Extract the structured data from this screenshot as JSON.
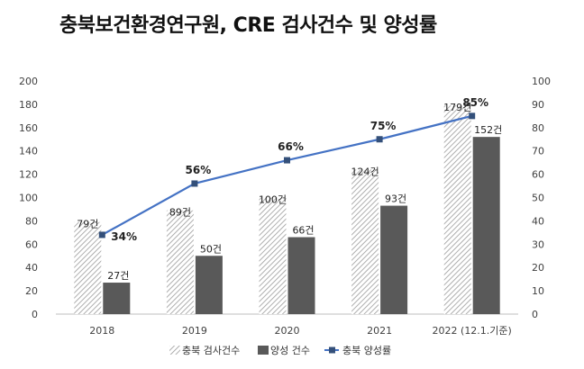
{
  "title": "충북보건환경연구원, CRE 검사건수 및 양성률",
  "chart_data": {
    "type": "bar",
    "categories": [
      "2018",
      "2019",
      "2020",
      "2021",
      "2022 (12.1.기준)"
    ],
    "series": [
      {
        "name": "충북 검사건수",
        "kind": "bar",
        "axis": "left",
        "pattern": "hatch",
        "values": [
          79,
          89,
          100,
          124,
          179
        ],
        "labels": [
          "79건",
          "89건",
          "100건",
          "124건",
          "179건"
        ]
      },
      {
        "name": "양성 건수",
        "kind": "bar",
        "axis": "left",
        "color": "#595959",
        "values": [
          27,
          50,
          66,
          93,
          152
        ],
        "labels": [
          "27건",
          "50건",
          "66건",
          "93건",
          "152건"
        ]
      },
      {
        "name": "충북 양성률",
        "kind": "line",
        "axis": "right",
        "color": "#4472c4",
        "values": [
          34,
          56,
          66,
          75,
          85
        ],
        "labels": [
          "34%",
          "56%",
          "66%",
          "75%",
          "85%"
        ]
      }
    ],
    "ylim": [
      0,
      200
    ],
    "yticks": [
      "0",
      "20",
      "40",
      "60",
      "80",
      "100",
      "120",
      "140",
      "160",
      "180",
      "200"
    ],
    "y2lim": [
      0,
      100
    ],
    "y2ticks": [
      "0",
      "10",
      "20",
      "30",
      "40",
      "50",
      "60",
      "70",
      "80",
      "90",
      "100"
    ],
    "legend_position": "bottom",
    "grid": false
  }
}
